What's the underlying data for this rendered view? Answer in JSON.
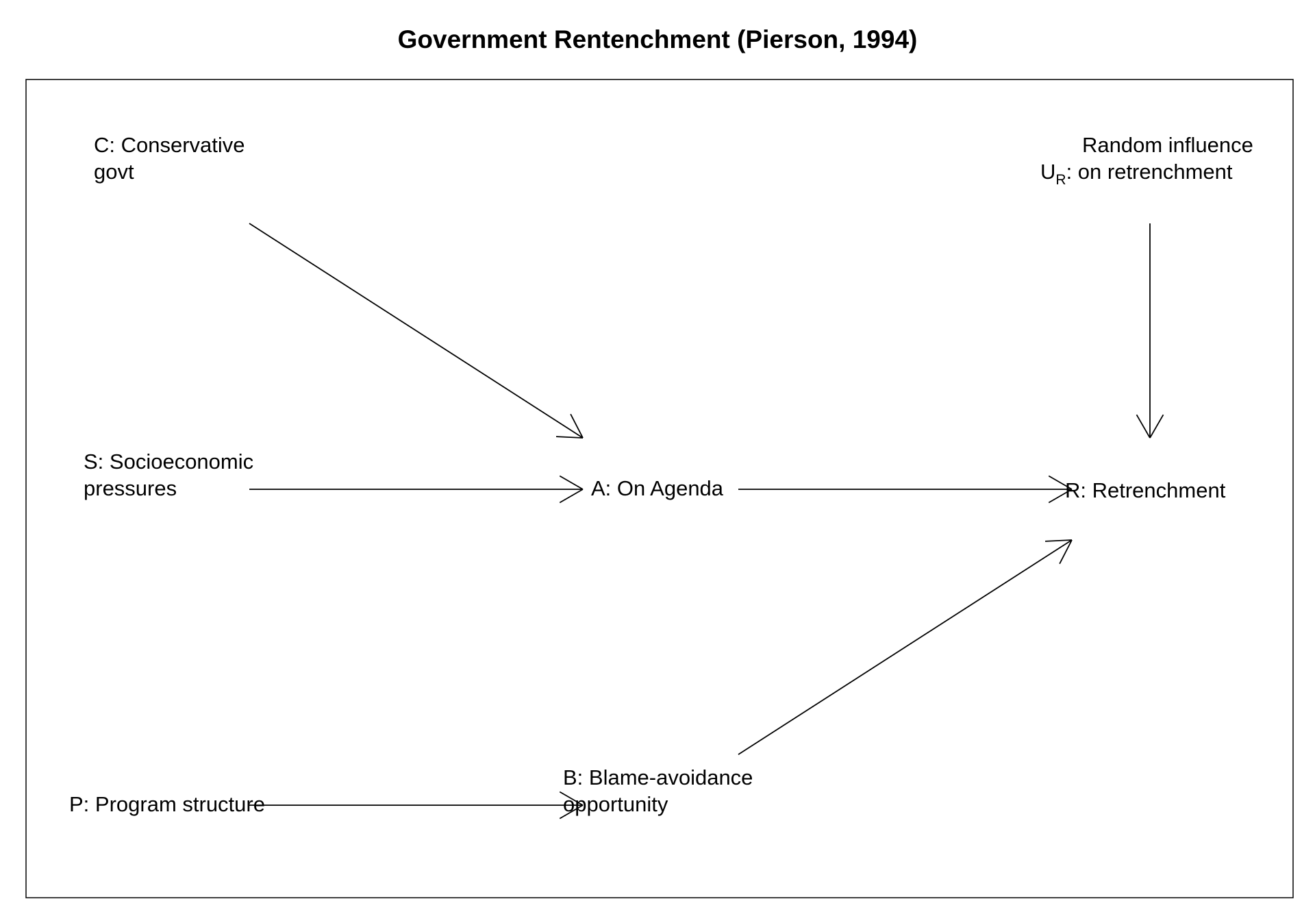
{
  "title": "Government Rentenchment (Pierson, 1994)",
  "nodes": {
    "C": {
      "line1": "C: Conservative",
      "line2": "govt"
    },
    "S": {
      "line1": "S: Socioeconomic",
      "line2": "pressures"
    },
    "P": {
      "line1": "P: Program structure"
    },
    "A": {
      "line1": "A: On Agenda"
    },
    "B": {
      "line1": "B: Blame-avoidance",
      "line2": "opportunity"
    },
    "R": {
      "line1": "R: Retrenchment"
    },
    "U": {
      "line1": "Random influence",
      "symbol": "U",
      "subscript": "R",
      "line2": ":  on retrenchment"
    }
  },
  "edges": [
    {
      "from": "C",
      "to": "A"
    },
    {
      "from": "S",
      "to": "A"
    },
    {
      "from": "P",
      "to": "B"
    },
    {
      "from": "A",
      "to": "R"
    },
    {
      "from": "B",
      "to": "R"
    },
    {
      "from": "U",
      "to": "R"
    }
  ],
  "style": {
    "stroke": "#000000",
    "background": "#ffffff"
  }
}
